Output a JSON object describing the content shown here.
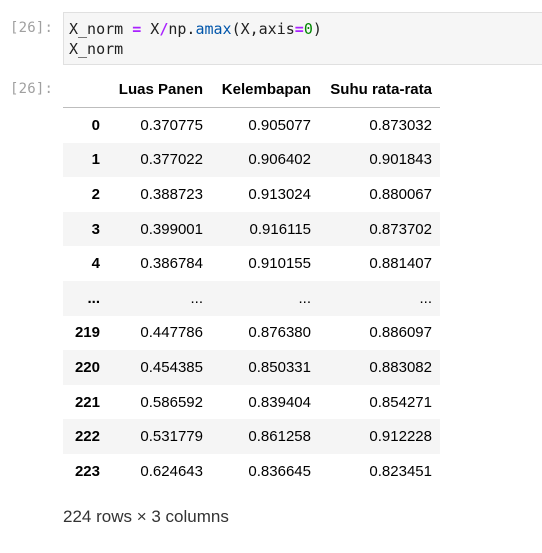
{
  "input_cell": {
    "prompt": "[26]:",
    "code_lines": [
      "X_norm = X/np.amax(X,axis=0)",
      "X_norm"
    ]
  },
  "output_cell": {
    "prompt": "[26]:",
    "columns": [
      "",
      "Luas Panen",
      "Kelembapan",
      "Suhu rata-rata"
    ],
    "rows": [
      {
        "index": "0",
        "values": [
          "0.370775",
          "0.905077",
          "0.873032"
        ]
      },
      {
        "index": "1",
        "values": [
          "0.377022",
          "0.906402",
          "0.901843"
        ]
      },
      {
        "index": "2",
        "values": [
          "0.388723",
          "0.913024",
          "0.880067"
        ]
      },
      {
        "index": "3",
        "values": [
          "0.399001",
          "0.916115",
          "0.873702"
        ]
      },
      {
        "index": "4",
        "values": [
          "0.386784",
          "0.910155",
          "0.881407"
        ]
      },
      {
        "index": "...",
        "values": [
          "...",
          "...",
          "..."
        ]
      },
      {
        "index": "219",
        "values": [
          "0.447786",
          "0.876380",
          "0.886097"
        ]
      },
      {
        "index": "220",
        "values": [
          "0.454385",
          "0.850331",
          "0.883082"
        ]
      },
      {
        "index": "221",
        "values": [
          "0.586592",
          "0.839404",
          "0.854271"
        ]
      },
      {
        "index": "222",
        "values": [
          "0.531779",
          "0.861258",
          "0.912228"
        ]
      },
      {
        "index": "223",
        "values": [
          "0.624643",
          "0.836645",
          "0.823451"
        ]
      }
    ],
    "shape_text": "224 rows × 3 columns"
  },
  "colors": {
    "keyword_operator": "#aa22ff",
    "function_call": "#0055aa",
    "number_literal": "#008800",
    "prompt": "#a0a0a0",
    "code_background": "#f6f6f6",
    "row_stripe": "#f5f5f5"
  }
}
